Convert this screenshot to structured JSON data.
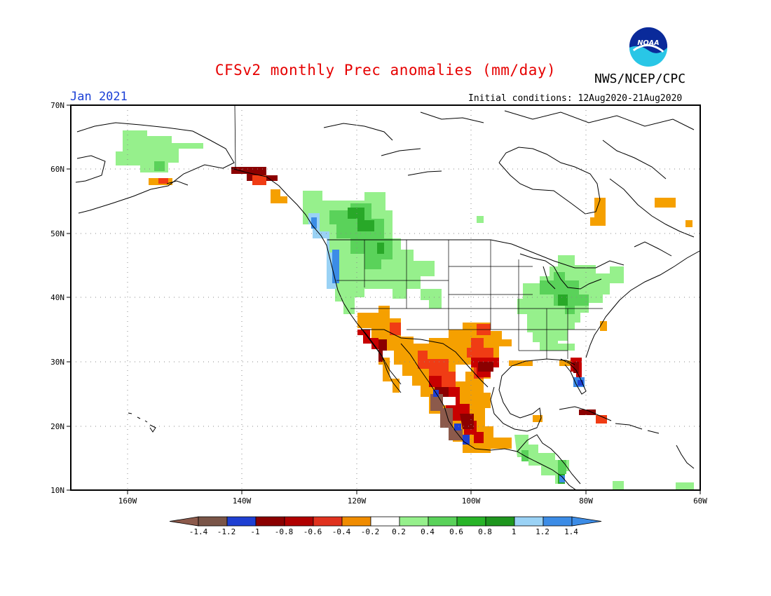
{
  "header": {
    "title": "CFSv2 monthly Prec anomalies (mm/day)",
    "agency": "NWS/NCEP/CPC",
    "month": "Jan 2021",
    "initial_conditions": "Initial conditions: 12Aug2020-21Aug2020",
    "logo_text": "NOAA"
  },
  "map": {
    "lat_labels": [
      "70N",
      "60N",
      "50N",
      "40N",
      "30N",
      "20N",
      "10N"
    ],
    "lon_labels": [
      "160W",
      "140W",
      "120W",
      "100W",
      "80W",
      "60W"
    ]
  },
  "colorbar": {
    "ticks": [
      "-1.4",
      "-1.2",
      "-1",
      "-0.8",
      "-0.6",
      "-0.4",
      "-0.2",
      "0.2",
      "0.4",
      "0.6",
      "0.8",
      "1",
      "1.2",
      "1.4"
    ],
    "colors": [
      "#8c5a4b",
      "#7a5548",
      "#1e3fd2",
      "#8b0000",
      "#b00000",
      "#e0321e",
      "#f08c00",
      "#ffffff",
      "#96f08c",
      "#5ad25a",
      "#28b428",
      "#1e961e",
      "#9ad2f5",
      "#3c8ce6",
      "#3c8ce6"
    ]
  },
  "palette": {
    "brown": "#8c5a4b",
    "blue_dark": "#1e3fd2",
    "dark_red": "#8b0000",
    "red": "#c80000",
    "red_orange": "#f03c14",
    "orange": "#f5a000",
    "light_green": "#96f08c",
    "green": "#5ad25a",
    "dark_green": "#28a828",
    "light_blue": "#9ad2f5",
    "blue": "#3c8ce6"
  }
}
